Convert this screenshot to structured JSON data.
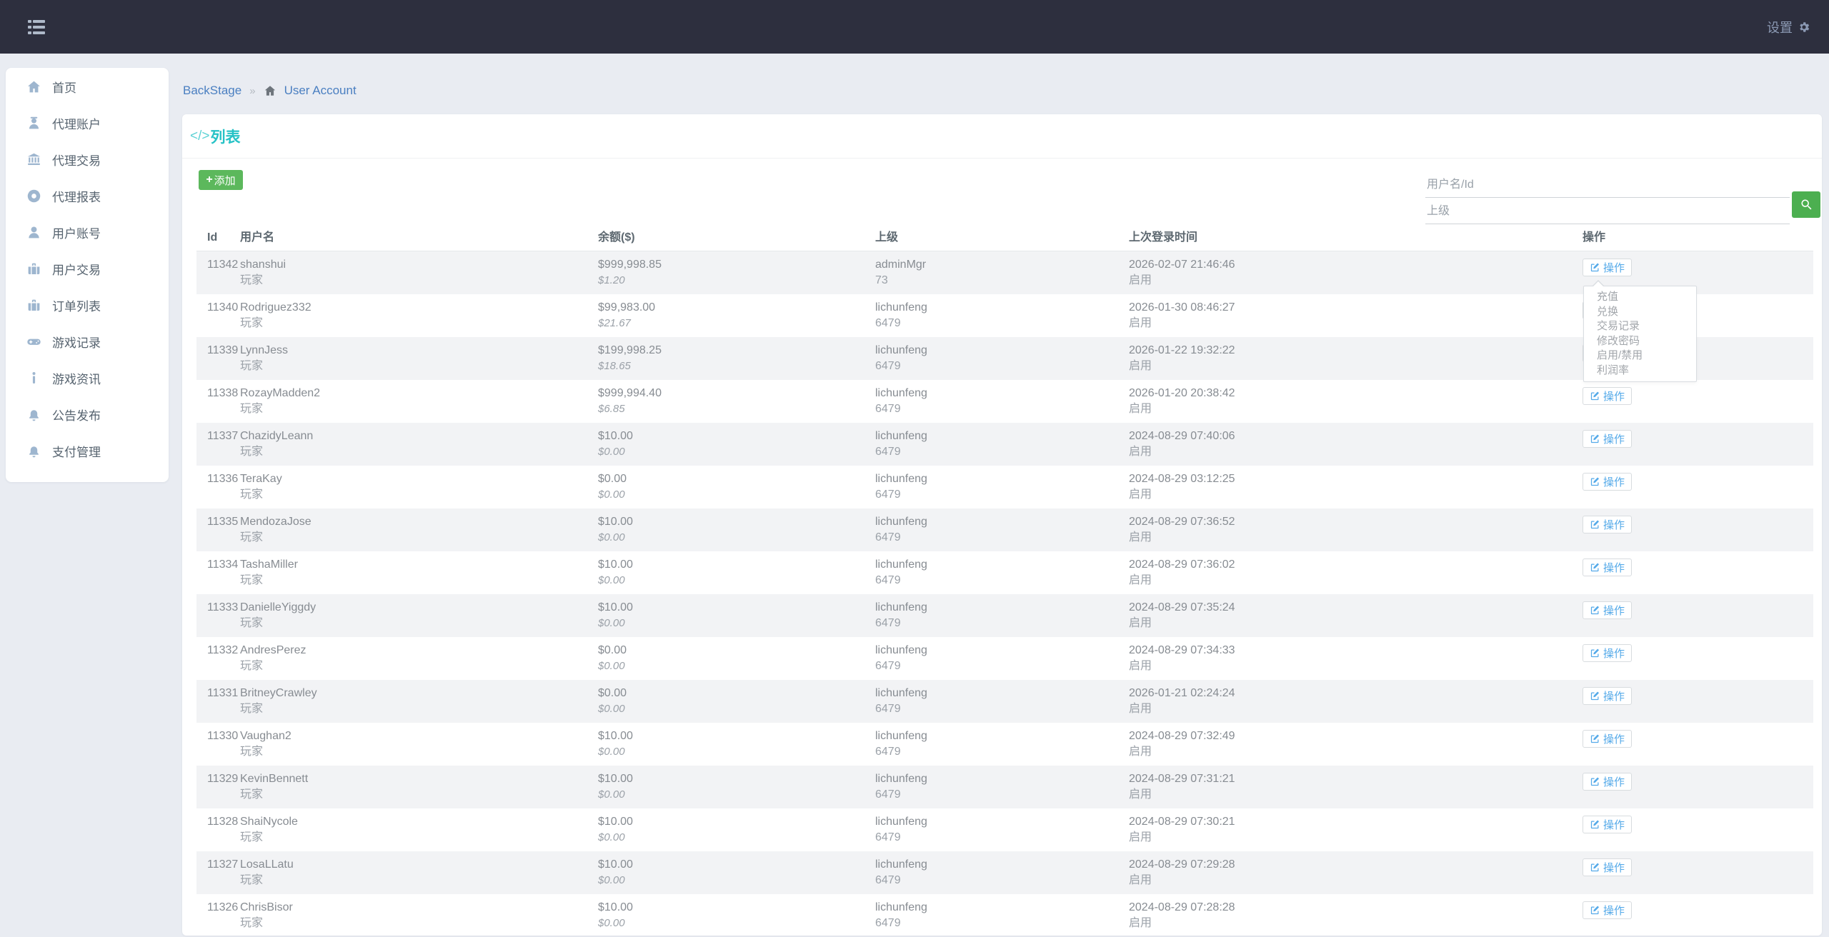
{
  "navbar": {
    "menu_icon": "list-icon",
    "settings_label": "设置",
    "settings_icon": "gear-icon"
  },
  "sidebar": {
    "items": [
      {
        "name": "sidebar-item-home",
        "icon": "home-icon",
        "label": "首页"
      },
      {
        "name": "sidebar-item-agent-account",
        "icon": "agent-icon",
        "label": "代理账户"
      },
      {
        "name": "sidebar-item-agent-trade",
        "icon": "bank-icon",
        "label": "代理交易"
      },
      {
        "name": "sidebar-item-agent-report",
        "icon": "lifering-icon",
        "label": "代理报表"
      },
      {
        "name": "sidebar-item-user-account",
        "icon": "user-icon",
        "label": "用户账号"
      },
      {
        "name": "sidebar-item-user-trade",
        "icon": "briefcase-icon",
        "label": "用户交易"
      },
      {
        "name": "sidebar-item-order-list",
        "icon": "briefcase-icon",
        "label": "订单列表"
      },
      {
        "name": "sidebar-item-game-records",
        "icon": "gamepad-icon",
        "label": "游戏记录"
      },
      {
        "name": "sidebar-item-game-news",
        "icon": "info-icon",
        "label": "游戏资讯"
      },
      {
        "name": "sidebar-item-announcement",
        "icon": "bell-icon",
        "label": "公告发布"
      },
      {
        "name": "sidebar-item-payment",
        "icon": "bell-icon",
        "label": "支付管理"
      }
    ]
  },
  "breadcrumb": {
    "root": "BackStage",
    "separator": "»",
    "home_icon": "home-icon",
    "current": "User Account"
  },
  "panel": {
    "title_prefix": "</>",
    "title_text": "列表",
    "add_plus": "+",
    "add_label": "添加"
  },
  "search": {
    "username_placeholder": "用户名/Id",
    "parent_placeholder": "上级",
    "search_icon": "search-icon"
  },
  "table": {
    "columns": [
      "Id",
      "用户名",
      "余额($)",
      "上级",
      "上次登录时间",
      "操作"
    ],
    "rows": [
      {
        "id": "11342",
        "username": "shanshui",
        "role": "玩家",
        "balance": "$999,998.85",
        "balance_sub": "$1.20",
        "parent": "adminMgr",
        "parent_id": "73",
        "last_login": "2026-02-07 21:46:46",
        "status": "启用",
        "menu_open": true
      },
      {
        "id": "11340",
        "username": "Rodriguez332",
        "role": "玩家",
        "balance": "$99,983.00",
        "balance_sub": "$21.67",
        "parent": "lichunfeng",
        "parent_id": "6479",
        "last_login": "2026-01-30 08:46:27",
        "status": "启用"
      },
      {
        "id": "11339",
        "username": "LynnJess",
        "role": "玩家",
        "balance": "$199,998.25",
        "balance_sub": "$18.65",
        "parent": "lichunfeng",
        "parent_id": "6479",
        "last_login": "2026-01-22 19:32:22",
        "status": "启用"
      },
      {
        "id": "11338",
        "username": "RozayMadden2",
        "role": "玩家",
        "balance": "$999,994.40",
        "balance_sub": "$6.85",
        "parent": "lichunfeng",
        "parent_id": "6479",
        "last_login": "2026-01-20 20:38:42",
        "status": "启用"
      },
      {
        "id": "11337",
        "username": "ChazidyLeann",
        "role": "玩家",
        "balance": "$10.00",
        "balance_sub": "$0.00",
        "parent": "lichunfeng",
        "parent_id": "6479",
        "last_login": "2024-08-29 07:40:06",
        "status": "启用"
      },
      {
        "id": "11336",
        "username": "TeraKay",
        "role": "玩家",
        "balance": "$0.00",
        "balance_sub": "$0.00",
        "parent": "lichunfeng",
        "parent_id": "6479",
        "last_login": "2024-08-29 03:12:25",
        "status": "启用"
      },
      {
        "id": "11335",
        "username": "MendozaJose",
        "role": "玩家",
        "balance": "$10.00",
        "balance_sub": "$0.00",
        "parent": "lichunfeng",
        "parent_id": "6479",
        "last_login": "2024-08-29 07:36:52",
        "status": "启用"
      },
      {
        "id": "11334",
        "username": "TashaMiller",
        "role": "玩家",
        "balance": "$10.00",
        "balance_sub": "$0.00",
        "parent": "lichunfeng",
        "parent_id": "6479",
        "last_login": "2024-08-29 07:36:02",
        "status": "启用"
      },
      {
        "id": "11333",
        "username": "DanielleYiggdy",
        "role": "玩家",
        "balance": "$10.00",
        "balance_sub": "$0.00",
        "parent": "lichunfeng",
        "parent_id": "6479",
        "last_login": "2024-08-29 07:35:24",
        "status": "启用"
      },
      {
        "id": "11332",
        "username": "AndresPerez",
        "role": "玩家",
        "balance": "$0.00",
        "balance_sub": "$0.00",
        "parent": "lichunfeng",
        "parent_id": "6479",
        "last_login": "2024-08-29 07:34:33",
        "status": "启用"
      },
      {
        "id": "11331",
        "username": "BritneyCrawley",
        "role": "玩家",
        "balance": "$0.00",
        "balance_sub": "$0.00",
        "parent": "lichunfeng",
        "parent_id": "6479",
        "last_login": "2026-01-21 02:24:24",
        "status": "启用"
      },
      {
        "id": "11330",
        "username": "Vaughan2",
        "role": "玩家",
        "balance": "$10.00",
        "balance_sub": "$0.00",
        "parent": "lichunfeng",
        "parent_id": "6479",
        "last_login": "2024-08-29 07:32:49",
        "status": "启用"
      },
      {
        "id": "11329",
        "username": "KevinBennett",
        "role": "玩家",
        "balance": "$10.00",
        "balance_sub": "$0.00",
        "parent": "lichunfeng",
        "parent_id": "6479",
        "last_login": "2024-08-29 07:31:21",
        "status": "启用"
      },
      {
        "id": "11328",
        "username": "ShaiNycole",
        "role": "玩家",
        "balance": "$10.00",
        "balance_sub": "$0.00",
        "parent": "lichunfeng",
        "parent_id": "6479",
        "last_login": "2024-08-29 07:30:21",
        "status": "启用"
      },
      {
        "id": "11327",
        "username": "LosaLLatu",
        "role": "玩家",
        "balance": "$10.00",
        "balance_sub": "$0.00",
        "parent": "lichunfeng",
        "parent_id": "6479",
        "last_login": "2024-08-29 07:29:28",
        "status": "启用"
      },
      {
        "id": "11326",
        "username": "ChrisBisor",
        "role": "玩家",
        "balance": "$10.00",
        "balance_sub": "$0.00",
        "parent": "lichunfeng",
        "parent_id": "6479",
        "last_login": "2024-08-29 07:28:28",
        "status": "启用"
      }
    ]
  },
  "actions": {
    "button_icon": "edit-icon",
    "button_label": "操作",
    "menu_items": [
      "充值",
      "兑换",
      "交易记录",
      "修改密码",
      "启用/禁用",
      "利润率"
    ]
  },
  "colors": {
    "navbar_bg": "#2d2f3e",
    "accent_teal": "#26c2c6",
    "add_green": "#5cb85c",
    "search_green": "#4caf50",
    "link_blue": "#4a7fc1",
    "action_blue": "#55aae9",
    "stripe_gray": "#f2f3f5"
  }
}
